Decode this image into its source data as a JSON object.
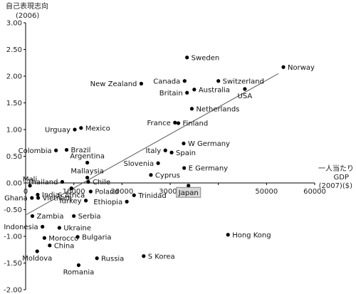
{
  "chart_data": {
    "type": "scatter",
    "title": "",
    "ylabel": "自己表現志向",
    "ylabel_sub": "(2006)",
    "xlabel": "一人当たり",
    "xlabel_line2": "GDP",
    "xlabel_line3": "(2007)($)",
    "xlim": [
      0,
      60000
    ],
    "ylim": [
      -2.0,
      3.0
    ],
    "xticks": [
      0,
      10000,
      20000,
      30000,
      40000,
      50000,
      60000
    ],
    "yticks": [
      3.0,
      2.5,
      2.0,
      1.5,
      1.0,
      0.5,
      0.0,
      -0.5,
      -1.0,
      -1.5,
      -2.0
    ],
    "xtick_labels": [
      "0",
      "10000",
      "20000",
      "30000",
      "",
      "50000",
      "60000"
    ],
    "ytick_labels": [
      "3.00",
      "2.50",
      "2.00",
      "1.50",
      "1.00",
      "0.50",
      "0.00",
      "-0.50",
      "-1.00",
      "-1.50",
      "-2.00"
    ],
    "highlight": "Japan",
    "grid": false,
    "trendline": {
      "x": [
        0,
        52500
      ],
      "y": [
        -0.6,
        2.05
      ]
    },
    "points": [
      {
        "name": "Sweden",
        "x": 33500,
        "y": 2.35,
        "label_side": "right"
      },
      {
        "name": "Norway",
        "x": 53500,
        "y": 2.17,
        "label_side": "right"
      },
      {
        "name": "Canada",
        "x": 33000,
        "y": 1.91,
        "label_side": "left"
      },
      {
        "name": "Switzerland",
        "x": 40000,
        "y": 1.91,
        "label_side": "right"
      },
      {
        "name": "New Zealand",
        "x": 24000,
        "y": 1.86,
        "label_side": "left"
      },
      {
        "name": "Australia",
        "x": 35000,
        "y": 1.75,
        "label_side": "right"
      },
      {
        "name": "Britain",
        "x": 33500,
        "y": 1.69,
        "label_side": "left"
      },
      {
        "name": "USA",
        "x": 45500,
        "y": 1.76,
        "label_side": "below"
      },
      {
        "name": "Netherlands",
        "x": 34500,
        "y": 1.39,
        "label_side": "right"
      },
      {
        "name": "France",
        "x": 31000,
        "y": 1.13,
        "label_side": "left"
      },
      {
        "name": "Finland",
        "x": 31700,
        "y": 1.12,
        "label_side": "right"
      },
      {
        "name": "Mexico",
        "x": 11500,
        "y": 1.03,
        "label_side": "right"
      },
      {
        "name": "Urguay",
        "x": 10200,
        "y": 1.0,
        "label_side": "left"
      },
      {
        "name": "W Germany",
        "x": 32800,
        "y": 0.74,
        "label_side": "right"
      },
      {
        "name": "Italy",
        "x": 29000,
        "y": 0.61,
        "label_side": "left"
      },
      {
        "name": "Spain",
        "x": 30300,
        "y": 0.57,
        "label_side": "right"
      },
      {
        "name": "Colombia",
        "x": 6300,
        "y": 0.61,
        "label_side": "left"
      },
      {
        "name": "Brazil",
        "x": 8500,
        "y": 0.62,
        "label_side": "right"
      },
      {
        "name": "Argentina",
        "x": 12800,
        "y": 0.38,
        "label_side": "above"
      },
      {
        "name": "Slovenia",
        "x": 27500,
        "y": 0.37,
        "label_side": "left"
      },
      {
        "name": "E Germany",
        "x": 32900,
        "y": 0.28,
        "label_side": "right"
      },
      {
        "name": "Cyprus",
        "x": 26000,
        "y": 0.15,
        "label_side": "right"
      },
      {
        "name": "Mallaysia",
        "x": 12800,
        "y": 0.1,
        "label_side": "above"
      },
      {
        "name": "Thailand",
        "x": 7600,
        "y": 0.02,
        "label_side": "left"
      },
      {
        "name": "Mali",
        "x": 900,
        "y": -0.05,
        "label_side": "above"
      },
      {
        "name": "Chile",
        "x": 13000,
        "y": 0.02,
        "label_side": "right"
      },
      {
        "name": "Japan",
        "x": 33800,
        "y": -0.05,
        "label_side": "below"
      },
      {
        "name": "India",
        "x": 2500,
        "y": -0.22,
        "label_side": "right"
      },
      {
        "name": "S Africa",
        "x": 9500,
        "y": -0.1,
        "label_side": "below"
      },
      {
        "name": "Poland",
        "x": 13500,
        "y": -0.16,
        "label_side": "right"
      },
      {
        "name": "Ghana",
        "x": 1300,
        "y": -0.28,
        "label_side": "left"
      },
      {
        "name": "Vietnam",
        "x": 2600,
        "y": -0.28,
        "label_side": "right"
      },
      {
        "name": "Trinidad",
        "x": 22500,
        "y": -0.23,
        "label_side": "right"
      },
      {
        "name": "Ethiopia",
        "x": 21000,
        "y": -0.35,
        "label_side": "left"
      },
      {
        "name": "Turkey",
        "x": 12500,
        "y": -0.33,
        "label_side": "left"
      },
      {
        "name": "Zambia",
        "x": 1400,
        "y": -0.62,
        "label_side": "right"
      },
      {
        "name": "Serbia",
        "x": 10000,
        "y": -0.62,
        "label_side": "right"
      },
      {
        "name": "Indonesia",
        "x": 3500,
        "y": -0.82,
        "label_side": "left"
      },
      {
        "name": "Ukraine",
        "x": 7000,
        "y": -0.84,
        "label_side": "right"
      },
      {
        "name": "Morocco",
        "x": 3900,
        "y": -1.03,
        "label_side": "right"
      },
      {
        "name": "Bulgaria",
        "x": 10800,
        "y": -1.01,
        "label_side": "right"
      },
      {
        "name": "Hong Kong",
        "x": 42000,
        "y": -0.97,
        "label_side": "right"
      },
      {
        "name": "China",
        "x": 5000,
        "y": -1.17,
        "label_side": "right"
      },
      {
        "name": "Moldova",
        "x": 2400,
        "y": -1.28,
        "label_side": "below"
      },
      {
        "name": "Russia",
        "x": 14800,
        "y": -1.41,
        "label_side": "right"
      },
      {
        "name": "S Korea",
        "x": 24500,
        "y": -1.37,
        "label_side": "right"
      },
      {
        "name": "Romania",
        "x": 11000,
        "y": -1.54,
        "label_side": "below"
      }
    ]
  }
}
